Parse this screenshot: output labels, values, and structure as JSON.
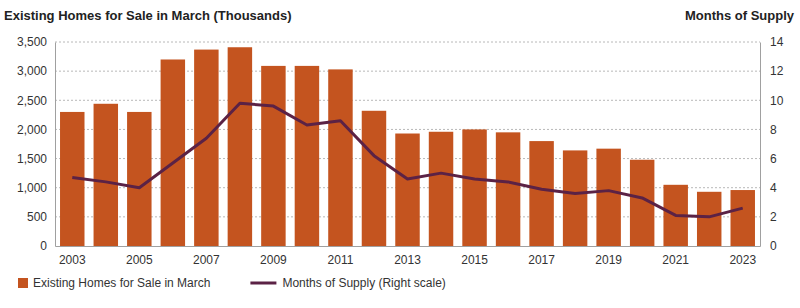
{
  "chart_data": {
    "type": "bar",
    "title": "Existing Homes for Sale in March (Thousands)",
    "y2label": "Months of Supply",
    "categories": [
      "2003",
      null,
      "2005",
      null,
      "2007",
      null,
      "2009",
      null,
      "2011",
      null,
      "2013",
      null,
      "2015",
      null,
      "2017",
      null,
      "2019",
      null,
      "2021",
      null,
      "2023"
    ],
    "series": [
      {
        "name": "Existing Homes for Sale in March",
        "type": "bar",
        "color": "#c4541f",
        "values": [
          2300,
          2440,
          2300,
          3200,
          3370,
          3410,
          3090,
          3090,
          3030,
          2320,
          1930,
          1960,
          2000,
          1950,
          1800,
          1640,
          1670,
          1480,
          1050,
          930,
          960
        ]
      },
      {
        "name": "Months of Supply (Right scale)",
        "type": "line",
        "axis": "y2",
        "color": "#5b2245",
        "values": [
          4.7,
          4.4,
          4.0,
          5.7,
          7.4,
          9.8,
          9.6,
          8.3,
          8.6,
          6.2,
          4.6,
          5.0,
          4.6,
          4.4,
          3.9,
          3.6,
          3.8,
          3.3,
          2.1,
          2.0,
          2.6
        ]
      }
    ],
    "ylim": [
      0,
      3500
    ],
    "yticks": [
      0,
      500,
      {
        "value": 1000,
        "label": "1,000"
      },
      {
        "value": 1500,
        "label": "1,500"
      },
      {
        "value": 2000,
        "label": "2,000"
      },
      {
        "value": 2500,
        "label": "2,500"
      },
      {
        "value": 3000,
        "label": "3,000"
      },
      {
        "value": 3500,
        "label": "3,500"
      }
    ],
    "y2lim": [
      0,
      14
    ],
    "y2ticks": [
      0,
      2,
      4,
      6,
      8,
      10,
      12,
      14
    ],
    "grid": true,
    "legend": "bottom"
  }
}
